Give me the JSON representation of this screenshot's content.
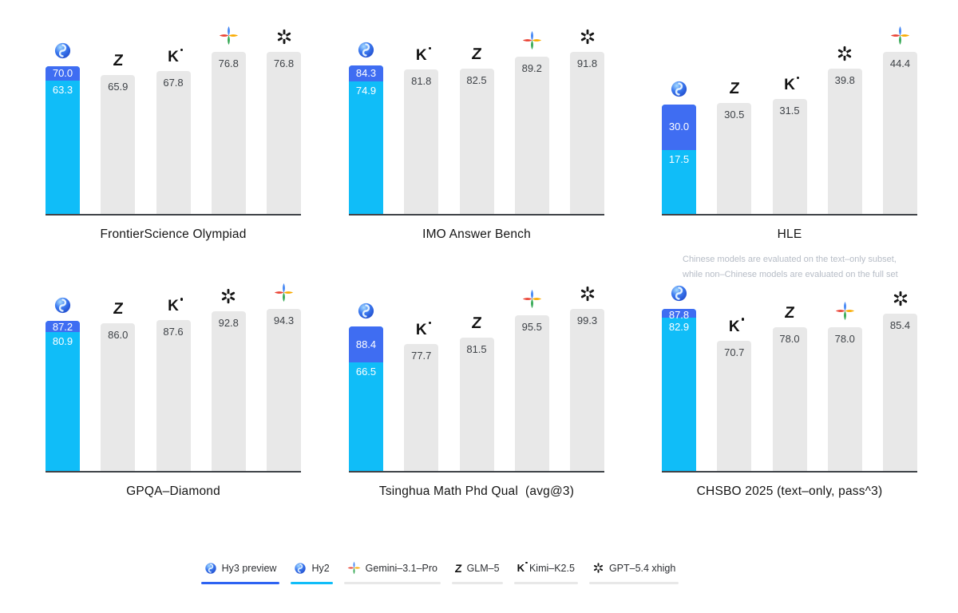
{
  "colors": {
    "hy3_blue": "#3F6DF2",
    "hy2_cyan": "#10BDF8",
    "bar_gray": "#E8E8E8",
    "bar_label": "#3E4247",
    "baseline": "#3F4348",
    "title": "#151515",
    "footnote_gray": "#B6BCC6"
  },
  "chart_data": {
    "type": "bar",
    "legend_position": "bottom",
    "value_labels": "inside-top",
    "grid": false,
    "charts": [
      {
        "title": "FrontierScience Olympiad",
        "bars": [
          {
            "model": "Hy3 preview / Hy2",
            "icon": "hunyuan-icon",
            "stacked": true,
            "hy3_preview": "70.0",
            "hy2": "63.3"
          },
          {
            "model": "GLM–5",
            "icon": "glm-icon",
            "value": "65.9"
          },
          {
            "model": "Kimi–K2.5",
            "icon": "kimi-icon",
            "value": "67.8"
          },
          {
            "model": "Gemini–3.1–Pro",
            "icon": "gemini-icon",
            "value": "76.8"
          },
          {
            "model": "GPT–5.4 xhigh",
            "icon": "openai-icon",
            "value": "76.8"
          }
        ]
      },
      {
        "title": "IMO Answer Bench",
        "bars": [
          {
            "model": "Hy3 preview / Hy2",
            "icon": "hunyuan-icon",
            "stacked": true,
            "hy3_preview": "84.3",
            "hy2": "74.9"
          },
          {
            "model": "Kimi–K2.5",
            "icon": "kimi-icon",
            "value": "81.8"
          },
          {
            "model": "GLM–5",
            "icon": "glm-icon",
            "value": "82.5"
          },
          {
            "model": "Gemini–3.1–Pro",
            "icon": "gemini-icon",
            "value": "89.2"
          },
          {
            "model": "GPT–5.4 xhigh",
            "icon": "openai-icon",
            "value": "91.8"
          }
        ]
      },
      {
        "title": "HLE",
        "footnote": [
          "Chinese models are evaluated on the text–only subset,",
          "while non–Chinese models are evaluated on the full set"
        ],
        "bars": [
          {
            "model": "Hy3 preview / Hy2",
            "icon": "hunyuan-icon",
            "stacked": true,
            "hy3_preview": "30.0",
            "hy2": "17.5"
          },
          {
            "model": "GLM–5",
            "icon": "glm-icon",
            "value": "30.5"
          },
          {
            "model": "Kimi–K2.5",
            "icon": "kimi-icon",
            "value": "31.5"
          },
          {
            "model": "GPT–5.4 xhigh",
            "icon": "openai-icon",
            "value": "39.8"
          },
          {
            "model": "Gemini–3.1–Pro",
            "icon": "gemini-icon",
            "value": "44.4"
          }
        ]
      },
      {
        "title": "GPQA–Diamond",
        "bars": [
          {
            "model": "Hy3 preview / Hy2",
            "icon": "hunyuan-icon",
            "stacked": true,
            "hy3_preview": "87.2",
            "hy2": "80.9"
          },
          {
            "model": "GLM–5",
            "icon": "glm-icon",
            "value": "86.0"
          },
          {
            "model": "Kimi–K2.5",
            "icon": "kimi-icon",
            "value": "87.6"
          },
          {
            "model": "GPT–5.4 xhigh",
            "icon": "openai-icon",
            "value": "92.8"
          },
          {
            "model": "Gemini–3.1–Pro",
            "icon": "gemini-icon",
            "value": "94.3"
          }
        ]
      },
      {
        "title": "Tsinghua Math Phd Qual  (avg@3)",
        "bars": [
          {
            "model": "Hy3 preview / Hy2",
            "icon": "hunyuan-icon",
            "stacked": true,
            "hy3_preview": "88.4",
            "hy2": "66.5"
          },
          {
            "model": "Kimi–K2.5",
            "icon": "kimi-icon",
            "value": "77.7"
          },
          {
            "model": "GLM–5",
            "icon": "glm-icon",
            "value": "81.5"
          },
          {
            "model": "Gemini–3.1–Pro",
            "icon": "gemini-icon",
            "value": "95.5"
          },
          {
            "model": "GPT–5.4 xhigh",
            "icon": "openai-icon",
            "value": "99.3"
          }
        ]
      },
      {
        "title": "CHSBO 2025 (text–only, pass^3)",
        "bars": [
          {
            "model": "Hy3 preview / Hy2",
            "icon": "hunyuan-icon",
            "stacked": true,
            "hy3_preview": "87.8",
            "hy2": "82.9"
          },
          {
            "model": "Kimi–K2.5",
            "icon": "kimi-icon",
            "value": "70.7"
          },
          {
            "model": "GLM–5",
            "icon": "glm-icon",
            "value": "78.0"
          },
          {
            "model": "Gemini–3.1–Pro",
            "icon": "gemini-icon",
            "value": "78.0"
          },
          {
            "model": "GPT–5.4 xhigh",
            "icon": "openai-icon",
            "value": "85.4"
          }
        ]
      }
    ]
  },
  "legend": {
    "items": [
      {
        "label": "Hy3 preview",
        "icon": "hunyuan-icon",
        "underline_color": "#2E63F2"
      },
      {
        "label": "Hy2",
        "icon": "hunyuan-icon",
        "underline_color": "#10BDF8"
      },
      {
        "label": "Gemini–3.1–Pro",
        "icon": "gemini-icon",
        "underline_color": "#E8E8E8"
      },
      {
        "label": "GLM–5",
        "icon": "glm-icon",
        "underline_color": "#E8E8E8"
      },
      {
        "label": "Kimi–K2.5",
        "icon": "kimi-icon",
        "underline_color": "#E8E8E8"
      },
      {
        "label": "GPT–5.4 xhigh",
        "icon": "openai-icon",
        "underline_color": "#E8E8E8"
      }
    ]
  }
}
